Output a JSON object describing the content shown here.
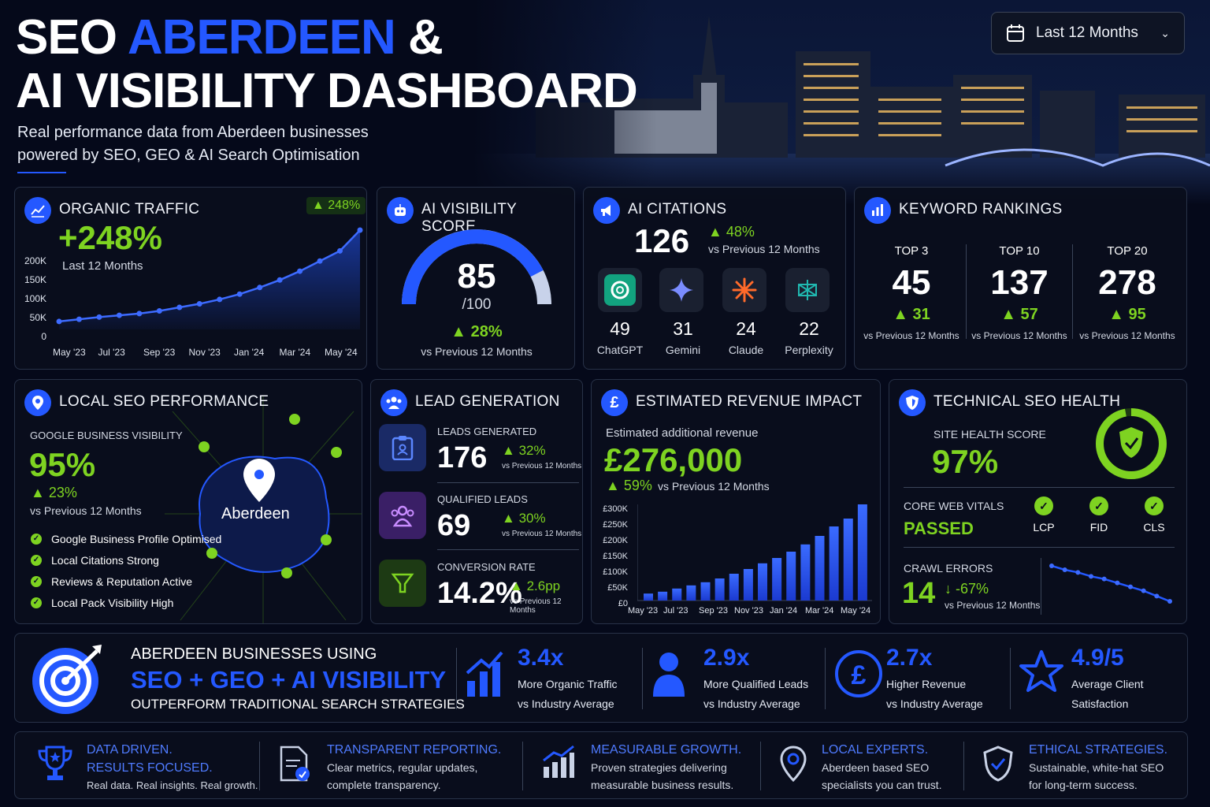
{
  "header": {
    "title_line1_a": "SEO ",
    "title_line1_b": "ABERDEEN",
    "title_line1_c": " &",
    "title_line2": "AI VISIBILITY DASHBOARD",
    "subtitle_line1": "Real performance data from Aberdeen businesses",
    "subtitle_line2": "powered by SEO, GEO & AI Search Optimisation",
    "date_range": "Last 12 Months"
  },
  "colors": {
    "accent": "#2458ff",
    "positive": "#7ed321",
    "background": "#05091a",
    "card": "#0a0e1c"
  },
  "organic": {
    "title": "ORGANIC TRAFFIC",
    "badge": "248%",
    "value": "+248%",
    "period": "Last 12 Months",
    "yticks": [
      "200K",
      "150K",
      "100K",
      "50K",
      "0"
    ],
    "xticks": [
      "May '23",
      "Jul '23",
      "Sep '23",
      "Nov '23",
      "Jan '24",
      "Mar '24",
      "May '24"
    ],
    "chart_data": {
      "type": "area",
      "ylim": [
        0,
        250000
      ],
      "values": [
        18000,
        23000,
        28000,
        32000,
        36000,
        42000,
        50000,
        58000,
        68000,
        80000,
        95000,
        112000,
        132000,
        155000,
        178000,
        225000
      ]
    }
  },
  "ai_score": {
    "title": "AI VISIBILITY SCORE",
    "value": "85",
    "max": "/100",
    "score_fraction": 0.85,
    "change": "28%",
    "vs": "vs Previous 12 Months"
  },
  "citations": {
    "title": "AI CITATIONS",
    "value": "126",
    "change": "48%",
    "vs": "vs Previous 12 Months",
    "platforms": [
      {
        "name": "ChatGPT",
        "count": "49",
        "icon": "chatgpt-icon"
      },
      {
        "name": "Gemini",
        "count": "31",
        "icon": "gemini-icon"
      },
      {
        "name": "Claude",
        "count": "24",
        "icon": "claude-icon"
      },
      {
        "name": "Perplexity",
        "count": "22",
        "icon": "perplexity-icon"
      }
    ]
  },
  "keywords": {
    "title": "KEYWORD RANKINGS",
    "cols": [
      {
        "label": "TOP 3",
        "value": "45",
        "change": "31",
        "vs": "vs Previous 12 Months"
      },
      {
        "label": "TOP 10",
        "value": "137",
        "change": "57",
        "vs": "vs Previous 12 Months"
      },
      {
        "label": "TOP 20",
        "value": "278",
        "change": "95",
        "vs": "vs Previous 12 Months"
      }
    ]
  },
  "local": {
    "title": "LOCAL SEO PERFORMANCE",
    "label": "GOOGLE BUSINESS VISIBILITY",
    "value": "95%",
    "change": "23%",
    "vs": "vs Previous 12 Months",
    "map_label": "Aberdeen",
    "items": [
      "Google Business Profile Optimised",
      "Local Citations Strong",
      "Reviews & Reputation Active",
      "Local Pack Visibility High"
    ]
  },
  "leads": {
    "title": "LEAD GENERATION",
    "rows": [
      {
        "label": "LEADS GENERATED",
        "value": "176",
        "change": "32%",
        "vs": "vs Previous 12 Months"
      },
      {
        "label": "QUALIFIED LEADS",
        "value": "69",
        "change": "30%",
        "vs": "vs Previous 12 Months"
      },
      {
        "label": "CONVERSION RATE",
        "value": "14.2%",
        "change": "2.6pp",
        "vs": "vs Previous 12 Months"
      }
    ]
  },
  "revenue": {
    "title": "ESTIMATED REVENUE IMPACT",
    "label": "Estimated additional revenue",
    "value": "£276,000",
    "change": "59%",
    "vs": "vs Previous 12 Months",
    "yticks": [
      "£300K",
      "£250K",
      "£200K",
      "£150K",
      "£100K",
      "£50K",
      "£0"
    ],
    "xticks": [
      "May '23",
      "Jul '23",
      "Sep '23",
      "Nov '23",
      "Jan '24",
      "Mar '24",
      "May '24"
    ],
    "chart_data": {
      "type": "bar",
      "ylim": [
        0,
        300000
      ],
      "values": [
        22000,
        28000,
        38000,
        48000,
        58000,
        70000,
        85000,
        100000,
        118000,
        135000,
        155000,
        178000,
        205000,
        235000,
        260000,
        305000
      ]
    }
  },
  "tech": {
    "title": "TECHNICAL SEO HEALTH",
    "score_label": "SITE HEALTH SCORE",
    "score": "97%",
    "score_fraction": 0.97,
    "cwv_label": "CORE WEB VITALS",
    "cwv_status": "PASSED",
    "vitals": [
      "LCP",
      "FID",
      "CLS"
    ],
    "crawl_label": "CRAWL ERRORS",
    "crawl_value": "14",
    "crawl_change": "↓ -67%",
    "crawl_vs": "vs Previous 12 Months",
    "crawl_chart": {
      "type": "line",
      "values": [
        30,
        27,
        25,
        22,
        20,
        17,
        14,
        11,
        7,
        3
      ]
    }
  },
  "banner": {
    "line1": "ABERDEEN BUSINESSES USING",
    "line2": "SEO + GEO + AI VISIBILITY",
    "line3": "OUTPERFORM TRADITIONAL SEARCH STRATEGIES",
    "stats": [
      {
        "value": "3.4x",
        "line1": "More Organic Traffic",
        "line2": "vs Industry Average",
        "icon": "growth-chart-icon"
      },
      {
        "value": "2.9x",
        "line1": "More Qualified Leads",
        "line2": "vs Industry Average",
        "icon": "user-icon"
      },
      {
        "value": "2.7x",
        "line1": "Higher Revenue",
        "line2": "vs Industry Average",
        "icon": "pound-coin-icon"
      },
      {
        "value": "4.9/5",
        "line1": "Average Client",
        "line2": "Satisfaction",
        "icon": "star-icon"
      }
    ]
  },
  "footer": [
    {
      "t1": "DATA DRIVEN.",
      "t2": "RESULTS FOCUSED.",
      "d1": "Real data. Real insights. Real growth.",
      "d2": "",
      "icon": "trophy-icon"
    },
    {
      "t1": "TRANSPARENT REPORTING.",
      "t2": "",
      "d1": "Clear metrics, regular updates,",
      "d2": "complete transparency.",
      "icon": "report-icon"
    },
    {
      "t1": "MEASURABLE GROWTH.",
      "t2": "",
      "d1": "Proven strategies delivering",
      "d2": "measurable business results.",
      "icon": "bar-growth-icon"
    },
    {
      "t1": "LOCAL EXPERTS.",
      "t2": "",
      "d1": "Aberdeen based SEO",
      "d2": "specialists you can trust.",
      "icon": "location-pin-icon"
    },
    {
      "t1": "ETHICAL STRATEGIES.",
      "t2": "",
      "d1": "Sustainable, white-hat SEO",
      "d2": "for long-term success.",
      "icon": "shield-check-icon"
    }
  ]
}
